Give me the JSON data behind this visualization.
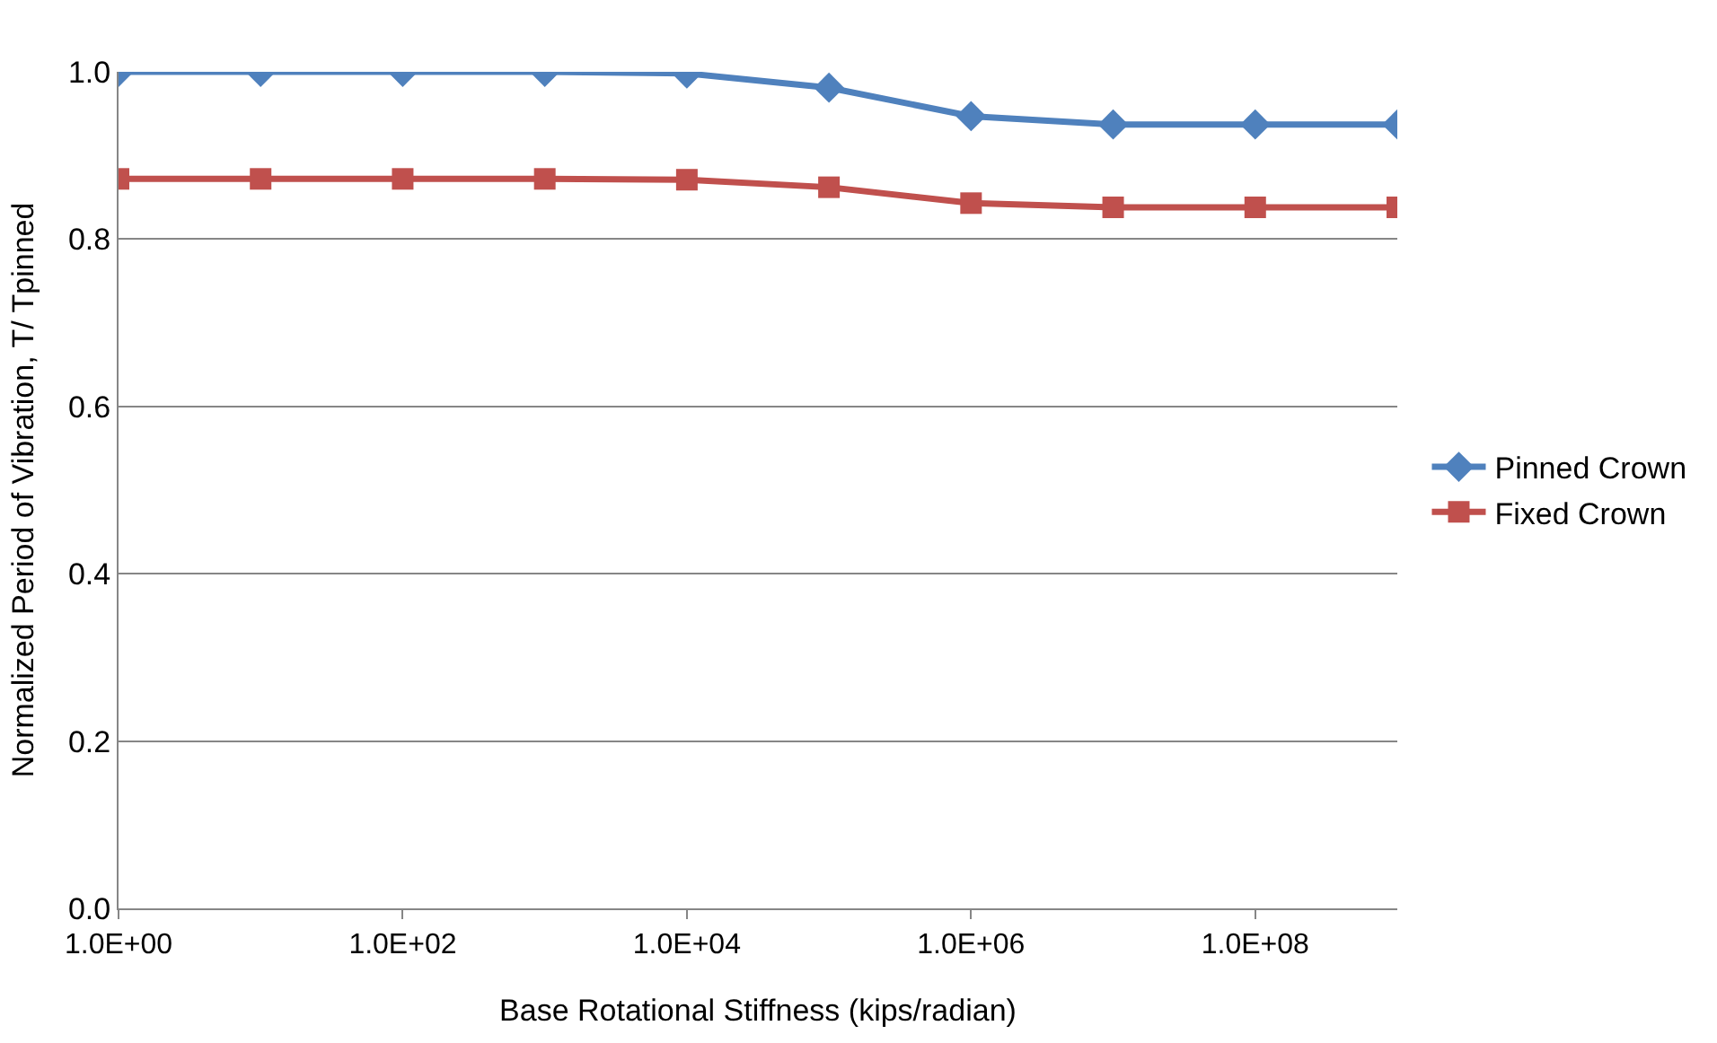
{
  "chart_data": {
    "type": "line",
    "xlabel": "Base Rotational Stiffness (kips/radian)",
    "ylabel": "Normalized Period of Vibration, T/ Tpinned",
    "x": [
      1,
      10,
      100,
      1000,
      10000,
      100000,
      1000000,
      10000000,
      100000000,
      1000000000
    ],
    "series": [
      {
        "name": "Pinned Crown",
        "color": "#4f81bd",
        "marker": "diamond",
        "values": [
          1.0,
          1.0,
          1.0,
          1.0,
          0.998,
          0.981,
          0.947,
          0.937,
          0.937,
          0.937
        ]
      },
      {
        "name": "Fixed Crown",
        "color": "#c0504d",
        "marker": "square",
        "values": [
          0.872,
          0.872,
          0.872,
          0.872,
          0.871,
          0.862,
          0.843,
          0.838,
          0.838,
          0.838
        ]
      }
    ],
    "log": "x",
    "xlim": [
      1,
      1000000000
    ],
    "xticks": [
      {
        "value": 1,
        "label": "1.0E+00"
      },
      {
        "value": 100,
        "label": "1.0E+02"
      },
      {
        "value": 10000,
        "label": "1.0E+04"
      },
      {
        "value": 1000000,
        "label": "1.0E+06"
      },
      {
        "value": 100000000,
        "label": "1.0E+08"
      }
    ],
    "ylim": [
      0,
      1.0
    ],
    "yticks": [
      {
        "value": 0,
        "label": "0.0"
      },
      {
        "value": 0.2,
        "label": "0.2"
      },
      {
        "value": 0.4,
        "label": "0.4"
      },
      {
        "value": 0.6,
        "label": "0.6"
      },
      {
        "value": 0.8,
        "label": "0.8"
      },
      {
        "value": 1.0,
        "label": "1.0"
      }
    ],
    "grid": "y",
    "legend": "right",
    "line_style": "solid"
  }
}
